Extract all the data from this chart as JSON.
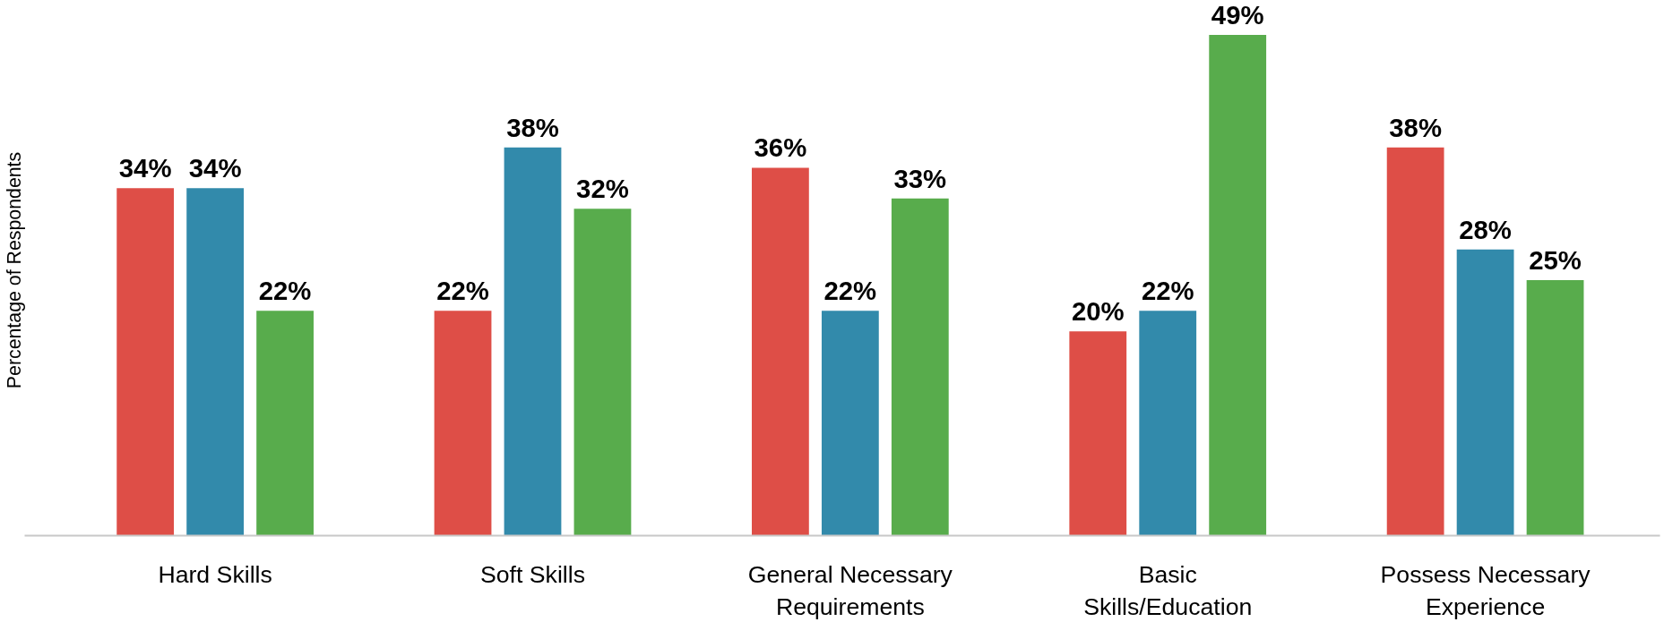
{
  "chart_data": {
    "type": "bar",
    "ylabel": "Percentage of Respondents",
    "categories": [
      "Hard Skills",
      "Soft Skills",
      "General Necessary Requirements",
      "Basic Skills/Education",
      "Possess Necessary Experience"
    ],
    "series": [
      {
        "color": "#de4e47",
        "values": [
          34,
          22,
          36,
          20,
          38
        ],
        "value_labels": [
          "34%",
          "22%",
          "36%",
          "20%",
          "38%"
        ]
      },
      {
        "color": "#328aab",
        "values": [
          34,
          38,
          22,
          22,
          28
        ],
        "value_labels": [
          "34%",
          "38%",
          "22%",
          "22%",
          "28%"
        ]
      },
      {
        "color": "#58ac4c",
        "values": [
          22,
          32,
          33,
          49,
          25
        ],
        "value_labels": [
          "22%",
          "32%",
          "33%",
          "49%",
          "25%"
        ]
      }
    ],
    "grid": false
  }
}
